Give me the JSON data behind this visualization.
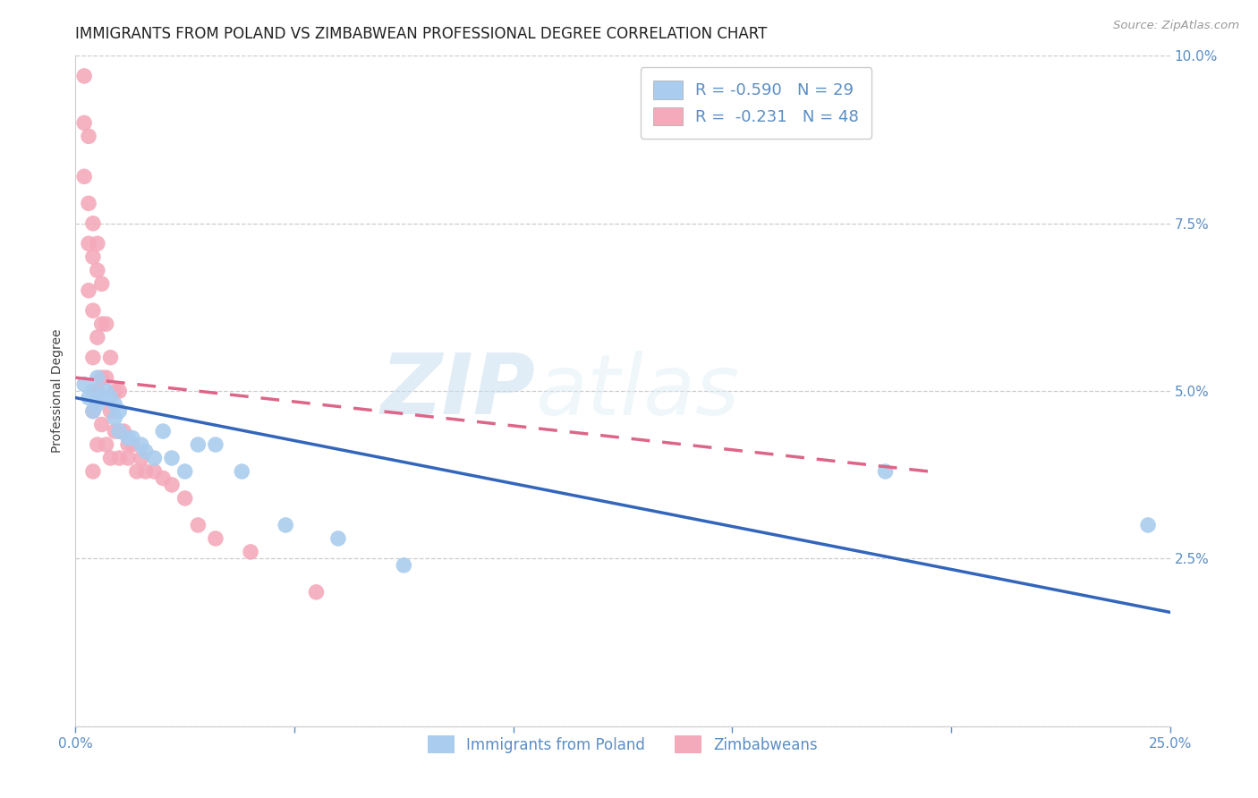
{
  "title": "IMMIGRANTS FROM POLAND VS ZIMBABWEAN PROFESSIONAL DEGREE CORRELATION CHART",
  "source": "Source: ZipAtlas.com",
  "ylabel": "Professional Degree",
  "xlim": [
    0.0,
    0.25
  ],
  "ylim": [
    0.0,
    0.1
  ],
  "xticks": [
    0.0,
    0.05,
    0.1,
    0.15,
    0.2,
    0.25
  ],
  "yticks": [
    0.0,
    0.025,
    0.05,
    0.075,
    0.1
  ],
  "right_ytick_labels": [
    "",
    "2.5%",
    "5.0%",
    "7.5%",
    "10.0%"
  ],
  "left_ytick_labels": [
    "",
    "",
    "",
    "",
    ""
  ],
  "xtick_labels": [
    "0.0%",
    "",
    "",
    "",
    "",
    "25.0%"
  ],
  "legend_r_blue": "R = -0.590",
  "legend_n_blue": "N = 29",
  "legend_r_pink": "R =  -0.231",
  "legend_n_pink": "N = 48",
  "legend_label_blue": "Immigrants from Poland",
  "legend_label_pink": "Zimbabweans",
  "axis_color": "#5b8ec4",
  "tick_color": "#5b8ec4",
  "grid_color": "#cccccc",
  "watermark_zip": "ZIP",
  "watermark_atlas": "atlas",
  "poland_scatter_x": [
    0.002,
    0.003,
    0.004,
    0.004,
    0.005,
    0.005,
    0.006,
    0.007,
    0.008,
    0.009,
    0.009,
    0.01,
    0.01,
    0.012,
    0.013,
    0.015,
    0.016,
    0.018,
    0.02,
    0.022,
    0.025,
    0.028,
    0.032,
    0.038,
    0.048,
    0.06,
    0.075,
    0.185,
    0.245
  ],
  "poland_scatter_y": [
    0.051,
    0.049,
    0.05,
    0.047,
    0.052,
    0.048,
    0.049,
    0.05,
    0.049,
    0.048,
    0.046,
    0.047,
    0.044,
    0.043,
    0.043,
    0.042,
    0.041,
    0.04,
    0.044,
    0.04,
    0.038,
    0.042,
    0.042,
    0.038,
    0.03,
    0.028,
    0.024,
    0.038,
    0.03
  ],
  "zimbabwe_scatter_x": [
    0.002,
    0.002,
    0.002,
    0.003,
    0.003,
    0.003,
    0.003,
    0.004,
    0.004,
    0.004,
    0.004,
    0.004,
    0.004,
    0.005,
    0.005,
    0.005,
    0.005,
    0.005,
    0.006,
    0.006,
    0.006,
    0.006,
    0.007,
    0.007,
    0.007,
    0.008,
    0.008,
    0.008,
    0.009,
    0.009,
    0.01,
    0.01,
    0.01,
    0.011,
    0.012,
    0.012,
    0.013,
    0.014,
    0.015,
    0.016,
    0.018,
    0.02,
    0.022,
    0.025,
    0.028,
    0.032,
    0.04,
    0.055
  ],
  "zimbabwe_scatter_y": [
    0.097,
    0.09,
    0.082,
    0.088,
    0.078,
    0.072,
    0.065,
    0.075,
    0.07,
    0.062,
    0.055,
    0.047,
    0.038,
    0.072,
    0.068,
    0.058,
    0.05,
    0.042,
    0.066,
    0.06,
    0.052,
    0.045,
    0.06,
    0.052,
    0.042,
    0.055,
    0.047,
    0.04,
    0.05,
    0.044,
    0.05,
    0.044,
    0.04,
    0.044,
    0.042,
    0.04,
    0.042,
    0.038,
    0.04,
    0.038,
    0.038,
    0.037,
    0.036,
    0.034,
    0.03,
    0.028,
    0.026,
    0.02
  ],
  "poland_line_x": [
    0.0,
    0.25
  ],
  "poland_line_y": [
    0.049,
    0.017
  ],
  "zimbabwe_line_x": [
    0.0,
    0.195
  ],
  "zimbabwe_line_y": [
    0.052,
    0.038
  ],
  "zimbabwe_line_dash": [
    6,
    4
  ],
  "poland_line_color": "#3366bb",
  "zimbabwe_line_color": "#dd6688",
  "poland_scatter_color": "#aaccee",
  "zimbabwe_scatter_color": "#f4aabb",
  "title_fontsize": 12,
  "axis_label_fontsize": 10,
  "tick_fontsize": 11
}
